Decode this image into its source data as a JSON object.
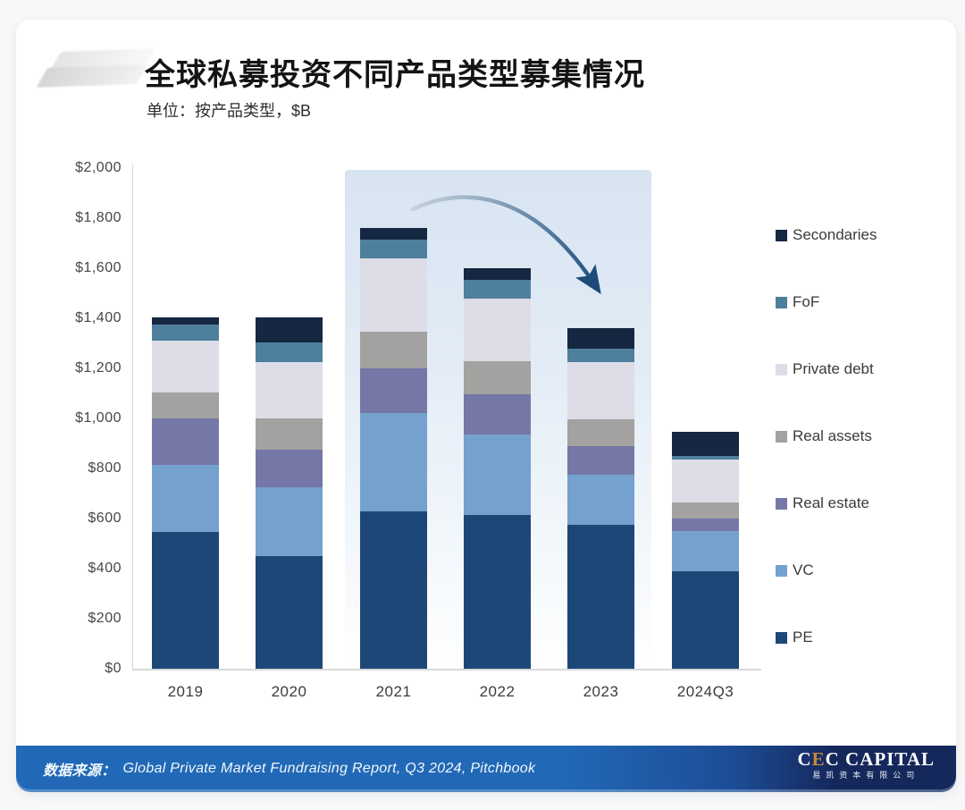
{
  "header": {
    "title": "全球私募投资不同产品类型募集情况",
    "subtitle": "单位：按产品类型，$B"
  },
  "chart_data": {
    "type": "bar",
    "variant": "stacked",
    "title": "全球私募投资不同产品类型募集情况",
    "unit": "$B",
    "categories": [
      "2019",
      "2020",
      "2021",
      "2022",
      "2023",
      "2024Q3"
    ],
    "series": [
      {
        "name": "Secondaries",
        "color": "#152741",
        "values": [
          30,
          100,
          45,
          45,
          80,
          95
        ]
      },
      {
        "name": "FoF",
        "color": "#4e7f9d",
        "values": [
          65,
          80,
          75,
          75,
          55,
          15
        ]
      },
      {
        "name": "Private debt",
        "color": "#dcdde6",
        "values": [
          205,
          225,
          295,
          250,
          230,
          170
        ]
      },
      {
        "name": "Real assets",
        "color": "#a3a2a0",
        "values": [
          105,
          125,
          145,
          135,
          105,
          65
        ]
      },
      {
        "name": "Real estate",
        "color": "#7577a7",
        "values": [
          185,
          150,
          180,
          160,
          115,
          50
        ]
      },
      {
        "name": "VC",
        "color": "#75a1ce",
        "values": [
          270,
          275,
          390,
          320,
          200,
          160
        ]
      },
      {
        "name": "PE",
        "color": "#1d4777",
        "values": [
          545,
          450,
          630,
          615,
          575,
          390
        ]
      }
    ],
    "totals_estimated": [
      1405,
      1405,
      1760,
      1600,
      1360,
      945
    ],
    "ylim": [
      0,
      2000
    ],
    "ytick_step": 200,
    "yticks": [
      "$2,000",
      "$1,800",
      "$1,600",
      "$1,400",
      "$1,200",
      "$1,000",
      "$800",
      "$600",
      "$400",
      "$200",
      "$0"
    ],
    "grid": "off",
    "legend_position": "right",
    "highlighted_categories": [
      "2021",
      "2022",
      "2023"
    ],
    "annotation": "downward-trend-arrow"
  },
  "footer": {
    "source_label": "数据来源：",
    "source_text": "Global Private Market Fundraising Report, Q3 2024, Pitchbook",
    "logo": {
      "part_c1": "C",
      "part_accent": "E",
      "part_rest": "C CAPITAL",
      "subtext": "易凯资本有限公司"
    }
  },
  "colors": {
    "footer_blue": "#2169b6",
    "footer_navy": "#15285c",
    "logo_accent": "#c9883b",
    "highlight_fill": "#d8e4f2",
    "arrow_dark": "#1d4e7e"
  }
}
